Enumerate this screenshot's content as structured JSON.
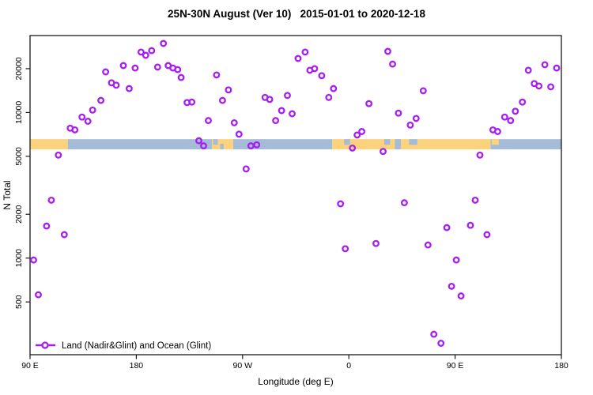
{
  "colors": {
    "marker": "#A81EF0",
    "land_band": "#FCD27C",
    "ocean_band": "#A5BCD9",
    "frame": "#1a1a1a"
  },
  "chart_data": {
    "type": "scatter",
    "title": "25N-30N August (Ver 10)   2015-01-01 to 2020-12-18",
    "xlabel": "Longitude (deg E)",
    "ylabel": "N Total",
    "x_axis": {
      "range": [
        90,
        540
      ],
      "ticks": [
        {
          "value": 90,
          "label": "90 E"
        },
        {
          "value": 180,
          "label": "180"
        },
        {
          "value": 270,
          "label": "90 W"
        },
        {
          "value": 360,
          "label": "0"
        },
        {
          "value": 450,
          "label": "90 E"
        },
        {
          "value": 540,
          "label": "180"
        }
      ]
    },
    "y_axis": {
      "scale": "log",
      "range": [
        220,
        33000
      ],
      "ticks": [
        {
          "value": 500,
          "label": "500"
        },
        {
          "value": 1000,
          "label": "1000"
        },
        {
          "value": 2000,
          "label": "2000"
        },
        {
          "value": 5000,
          "label": "5000"
        },
        {
          "value": 10000,
          "label": "10000"
        },
        {
          "value": 20000,
          "label": "20000"
        }
      ]
    },
    "legend": {
      "label": "Land (Nadir&Glint) and Ocean (Glint)",
      "position": "bottom-left"
    },
    "band": {
      "value_range": [
        5580,
        6560
      ],
      "segments": [
        {
          "from": 90,
          "to": 122,
          "surface": "land"
        },
        {
          "from": 122,
          "to": 244,
          "surface": "ocean"
        },
        {
          "from": 244,
          "to": 262,
          "surface": "land"
        },
        {
          "from": 262,
          "to": 346,
          "surface": "ocean"
        },
        {
          "from": 346,
          "to": 480,
          "surface": "land"
        },
        {
          "from": 480,
          "to": 540,
          "surface": "ocean"
        }
      ],
      "specks": [
        {
          "from": 245,
          "to": 249,
          "surface": "ocean",
          "pos": "top"
        },
        {
          "from": 251,
          "to": 254,
          "surface": "ocean",
          "pos": "bottom"
        },
        {
          "from": 356,
          "to": 361,
          "surface": "ocean",
          "pos": "top"
        },
        {
          "from": 390,
          "to": 395,
          "surface": "ocean",
          "pos": "top"
        },
        {
          "from": 399,
          "to": 404,
          "surface": "ocean",
          "pos": "full"
        },
        {
          "from": 411,
          "to": 418,
          "surface": "ocean",
          "pos": "top"
        },
        {
          "from": 481,
          "to": 487,
          "surface": "land",
          "pos": "top"
        }
      ]
    },
    "points": [
      [
        114,
        5100
      ],
      [
        124,
        7800
      ],
      [
        128,
        7600
      ],
      [
        134,
        9300
      ],
      [
        139,
        8700
      ],
      [
        143,
        10400
      ],
      [
        150,
        12100
      ],
      [
        154,
        19000
      ],
      [
        159,
        16000
      ],
      [
        163,
        15400
      ],
      [
        169,
        21000
      ],
      [
        174,
        14600
      ],
      [
        179,
        20200
      ],
      [
        184,
        26000
      ],
      [
        188,
        24700
      ],
      [
        193,
        26600
      ],
      [
        198,
        20500
      ],
      [
        203,
        29800
      ],
      [
        207,
        21000
      ],
      [
        211,
        20200
      ],
      [
        215,
        19700
      ],
      [
        218,
        17400
      ],
      [
        223,
        11700
      ],
      [
        227,
        11800
      ],
      [
        233,
        6400
      ],
      [
        237,
        5900
      ],
      [
        241,
        8800
      ],
      [
        248,
        18100
      ],
      [
        253,
        12100
      ],
      [
        258,
        14300
      ],
      [
        263,
        8500
      ],
      [
        267,
        7100
      ],
      [
        277,
        5900
      ],
      [
        282,
        6000
      ],
      [
        289,
        12700
      ],
      [
        293,
        12300
      ],
      [
        298,
        8800
      ],
      [
        303,
        10300
      ],
      [
        308,
        13100
      ],
      [
        312,
        9800
      ],
      [
        317,
        23500
      ],
      [
        323,
        26000
      ],
      [
        327,
        19500
      ],
      [
        331,
        20000
      ],
      [
        337,
        17900
      ],
      [
        343,
        12700
      ],
      [
        347,
        14600
      ],
      [
        363,
        5700
      ],
      [
        367,
        7000
      ],
      [
        371,
        7400
      ],
      [
        377,
        11500
      ],
      [
        389,
        5400
      ],
      [
        393,
        26300
      ],
      [
        397,
        21500
      ],
      [
        402,
        9900
      ],
      [
        412,
        8200
      ],
      [
        417,
        9100
      ],
      [
        423,
        14100
      ],
      [
        471,
        5100
      ],
      [
        482,
        7600
      ],
      [
        486,
        7400
      ],
      [
        492,
        9300
      ],
      [
        497,
        8800
      ],
      [
        501,
        10200
      ],
      [
        507,
        11800
      ],
      [
        512,
        19500
      ],
      [
        517,
        15800
      ],
      [
        521,
        15200
      ],
      [
        526,
        21300
      ],
      [
        531,
        15000
      ],
      [
        536,
        20200
      ],
      [
        93,
        970
      ],
      [
        97,
        560
      ],
      [
        104,
        1660
      ],
      [
        108,
        2500
      ],
      [
        119,
        1450
      ],
      [
        273,
        4100
      ],
      [
        353,
        2360
      ],
      [
        357,
        1160
      ],
      [
        383,
        1260
      ],
      [
        407,
        2400
      ],
      [
        427,
        1230
      ],
      [
        432,
        300
      ],
      [
        438,
        260
      ],
      [
        443,
        1620
      ],
      [
        447,
        640
      ],
      [
        451,
        970
      ],
      [
        455,
        550
      ],
      [
        463,
        1680
      ],
      [
        467,
        2500
      ],
      [
        477,
        1450
      ]
    ]
  }
}
